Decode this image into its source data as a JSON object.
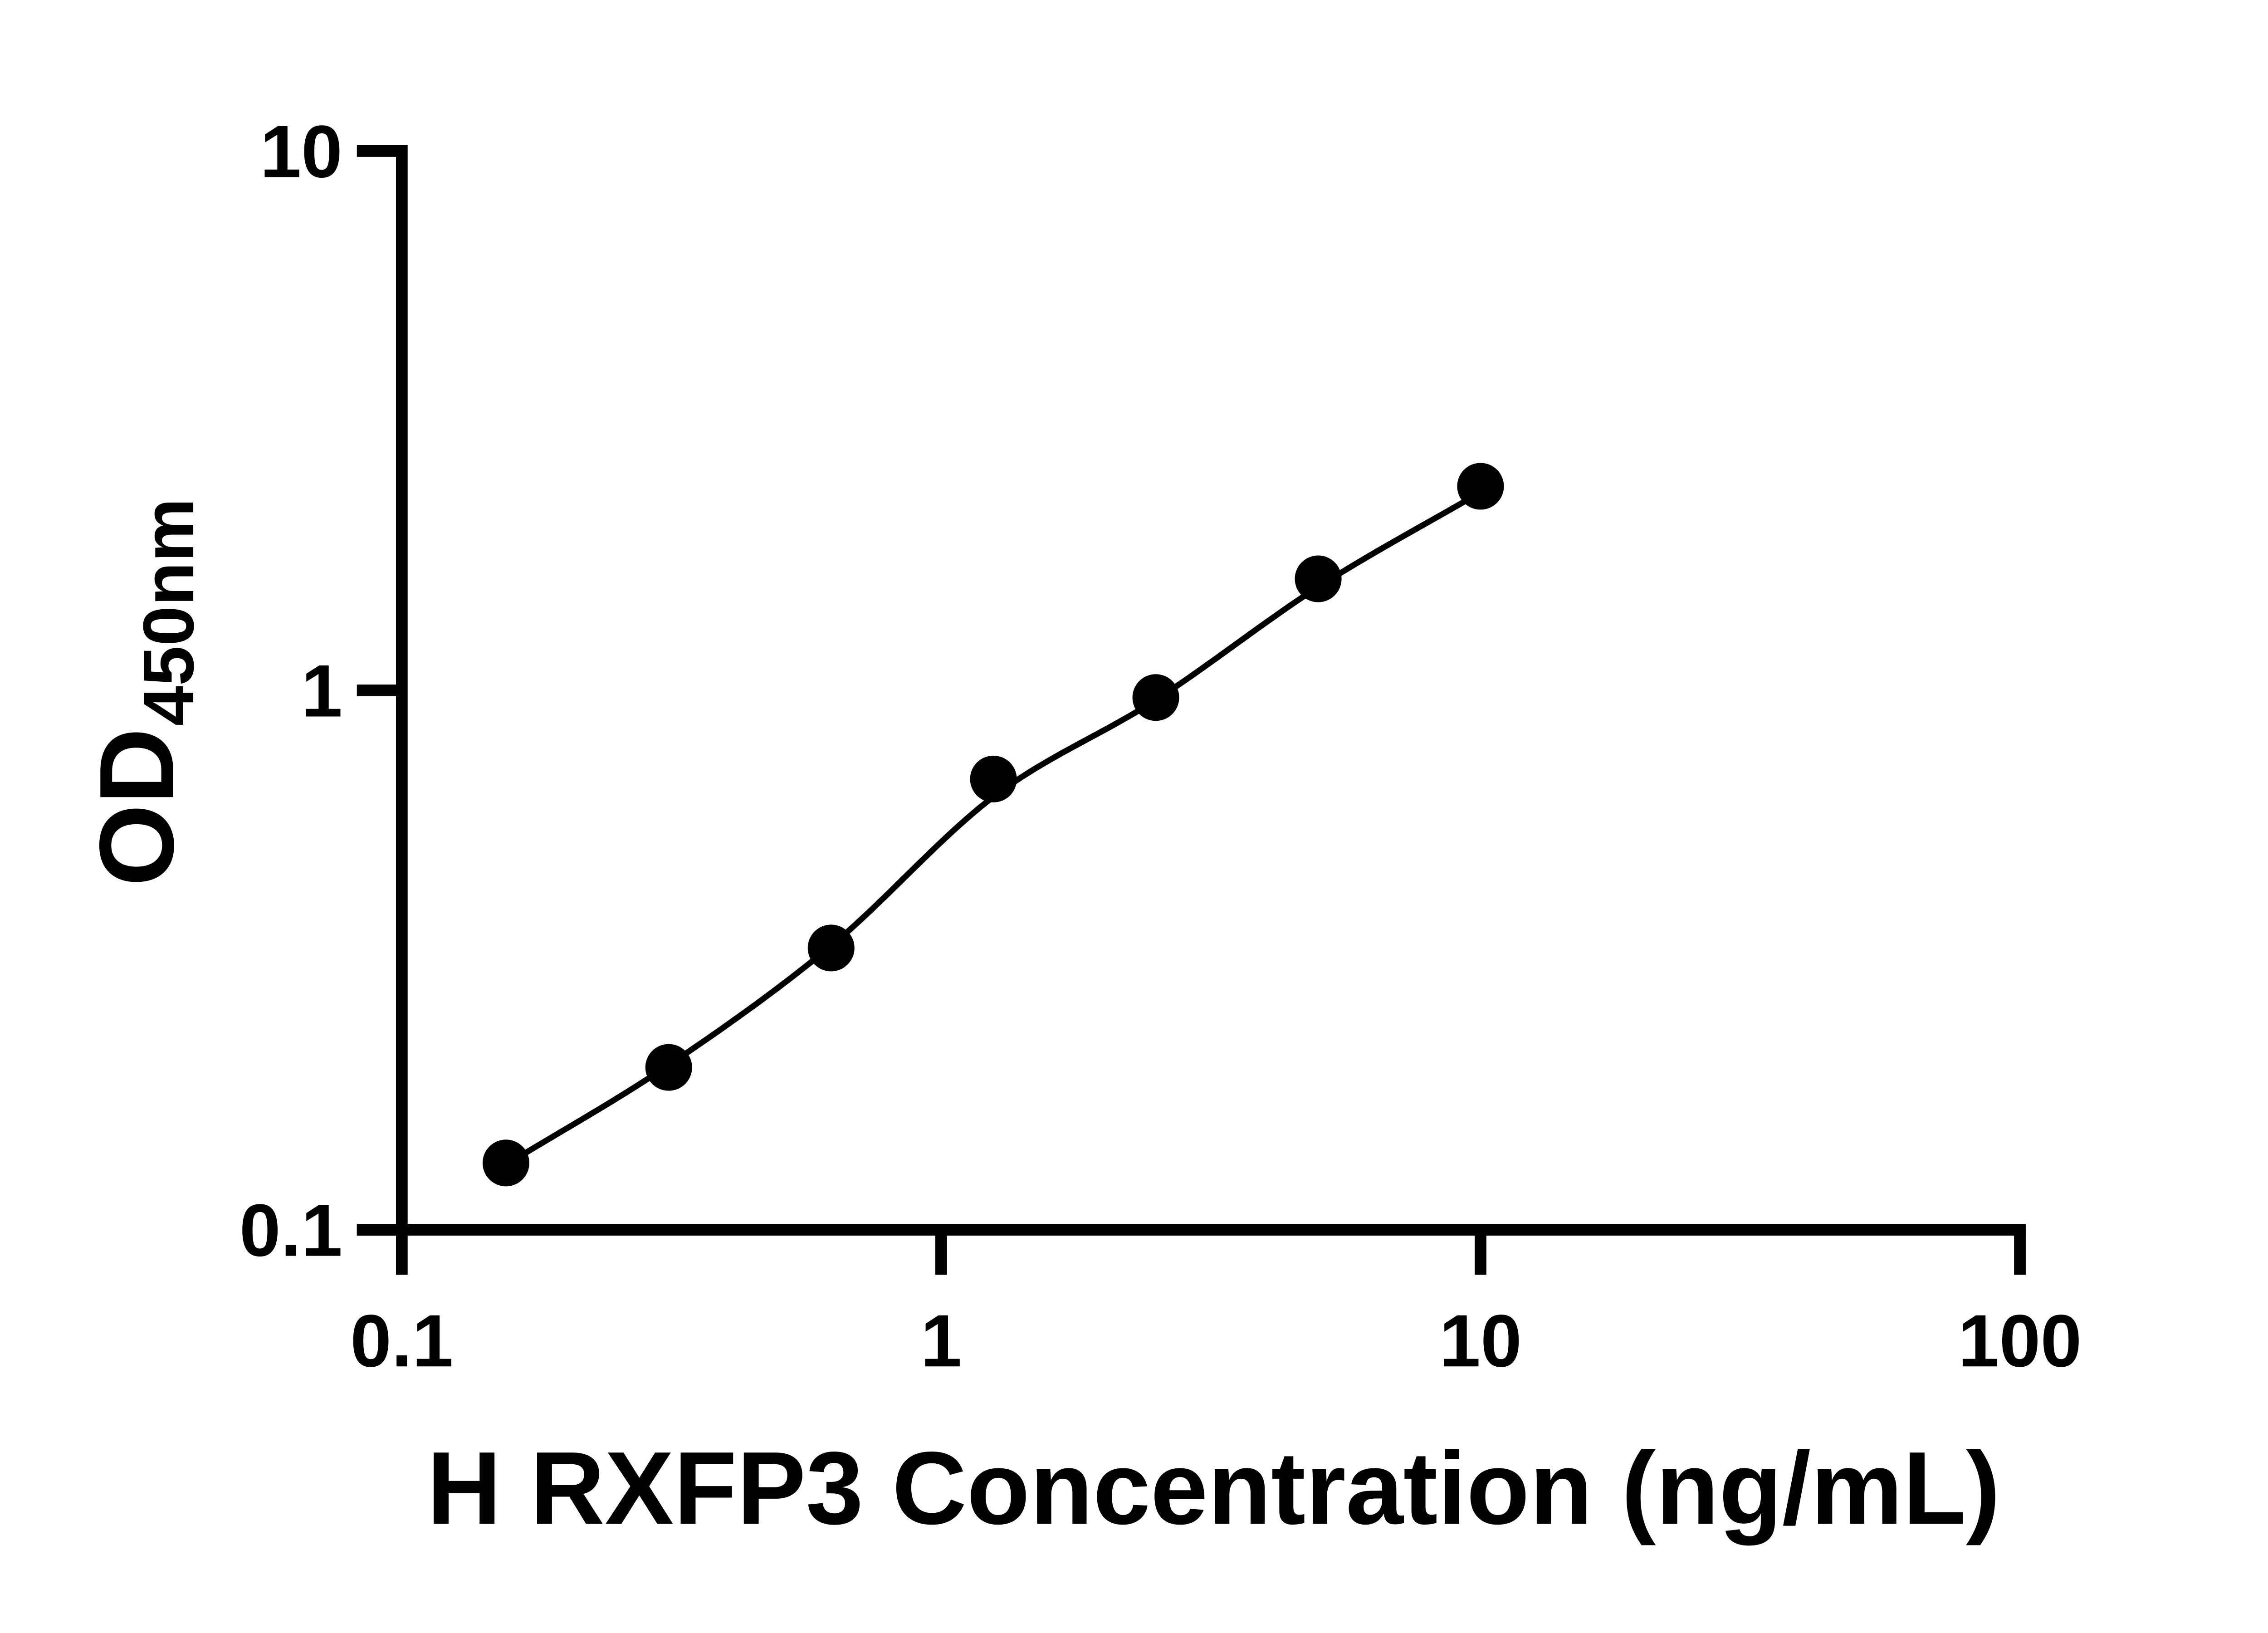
{
  "chart_data": {
    "type": "scatter",
    "xlabel": "H RXFP3 Concentration (ng/mL)",
    "ylabel_main": "OD",
    "ylabel_sub": "450nm",
    "x_scale": "log10",
    "y_scale": "log10",
    "xlim": [
      0.1,
      100
    ],
    "ylim": [
      0.1,
      10
    ],
    "grid": false,
    "legend": false,
    "background_color": "#ffffff",
    "foreground_color": "#000000",
    "x_ticks": [
      {
        "value": 0.1,
        "label": "0.1"
      },
      {
        "value": 1,
        "label": "1"
      },
      {
        "value": 10,
        "label": "10"
      },
      {
        "value": 100,
        "label": "100"
      }
    ],
    "y_ticks": [
      {
        "value": 10,
        "label": "10"
      },
      {
        "value": 1,
        "label": "1"
      },
      {
        "value": 0.1,
        "label": "0.1"
      }
    ],
    "series": [
      {
        "marker": "filled-circle",
        "color": "#000000",
        "points": [
          {
            "x": 0.156,
            "y": 0.133
          },
          {
            "x": 0.3125,
            "y": 0.2
          },
          {
            "x": 0.625,
            "y": 0.333
          },
          {
            "x": 1.25,
            "y": 0.685
          },
          {
            "x": 2.5,
            "y": 0.97
          },
          {
            "x": 5,
            "y": 1.61
          },
          {
            "x": 10,
            "y": 2.39
          }
        ]
      }
    ],
    "fit_curve": {
      "color": "#000000",
      "anchors": [
        [
          0.156,
          0.132
        ],
        [
          0.3125,
          0.202
        ],
        [
          0.625,
          0.336
        ],
        [
          1.25,
          0.635
        ],
        [
          2.5,
          0.96
        ],
        [
          5,
          1.555
        ],
        [
          10,
          2.33
        ]
      ]
    }
  }
}
